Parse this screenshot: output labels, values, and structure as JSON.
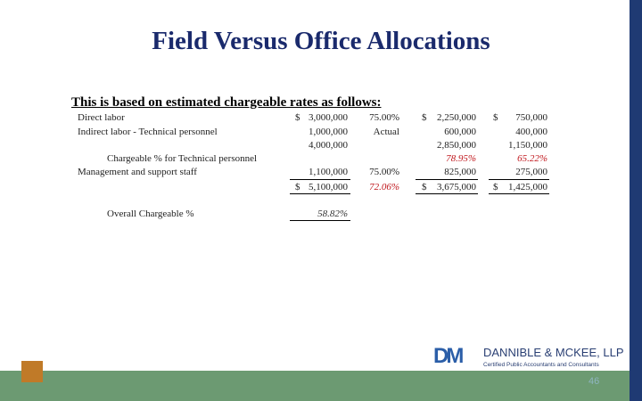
{
  "title": "Field Versus Office Allocations",
  "subtitle": "This is based on estimated chargeable rates as follows:",
  "rows": {
    "direct_labor": {
      "label": "Direct labor",
      "s1": "$",
      "total": "3,000,000",
      "rate": "75.00%",
      "s2": "$",
      "chargeable": "2,250,000",
      "s3": "$",
      "nonchargeable": "750,000"
    },
    "indirect_labor": {
      "label": "Indirect labor - Technical personnel",
      "total": "1,000,000",
      "rate": "Actual",
      "chargeable": "600,000",
      "nonchargeable": "400,000"
    },
    "subtotal": {
      "total": "4,000,000",
      "chargeable": "2,850,000",
      "nonchargeable": "1,150,000"
    },
    "chargeable_pct": {
      "label": "Chargeable % for Technical personnel",
      "chargeable": "78.95%",
      "nonchargeable": "65.22%"
    },
    "mgmt": {
      "label": "Management and support staff",
      "total": "1,100,000",
      "rate": "75.00%",
      "chargeable": "825,000",
      "nonchargeable": "275,000"
    },
    "total": {
      "s1": "$",
      "total": "5,100,000",
      "rate": "72.06%",
      "s2": "$",
      "chargeable": "3,675,000",
      "s3": "$",
      "nonchargeable": "1,425,000"
    },
    "overall": {
      "label": "Overall Chargeable %",
      "value": "58.82%"
    }
  },
  "footer": {
    "page_number": "46",
    "logo_mark": "DM",
    "logo_name": "DANNIBLE & MCKEE, LLP",
    "logo_tagline": "Certified Public Accountants and Consultants"
  },
  "colors": {
    "title": "#1a2a6c",
    "accent_red": "#c0171d",
    "band": "#6c9a72",
    "square": "#c07a28",
    "sidebar": "#1f3a73"
  }
}
